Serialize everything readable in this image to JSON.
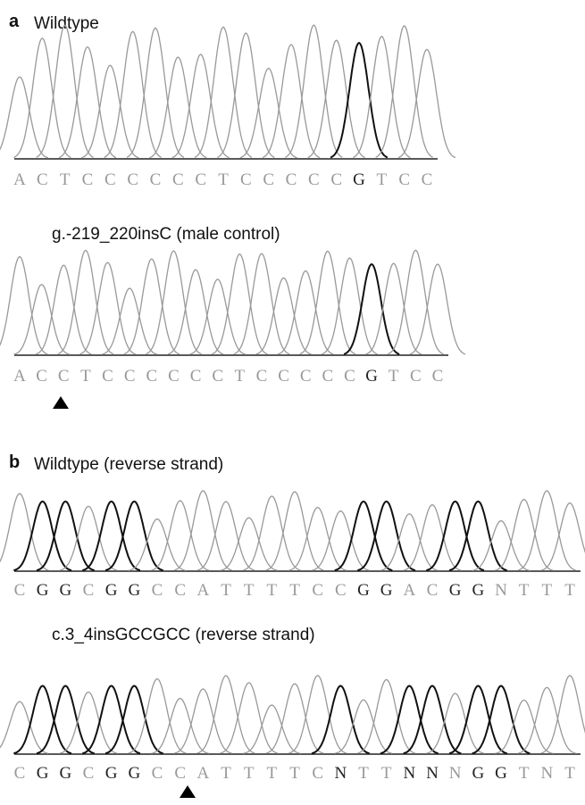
{
  "panels": [
    {
      "label": "a",
      "title": "Wildtype",
      "sequence": [
        "A",
        "C",
        "T",
        "C",
        "C",
        "C",
        "C",
        "C",
        "C",
        "T",
        "C",
        "C",
        "C",
        "C",
        "C",
        "G",
        "T",
        "C",
        "C"
      ]
    },
    {
      "title": "g.-219_220insC (male control)",
      "sequence": [
        "A",
        "C",
        "C",
        "T",
        "C",
        "C",
        "C",
        "C",
        "C",
        "C",
        "T",
        "C",
        "C",
        "C",
        "C",
        "C",
        "G",
        "T",
        "C",
        "C"
      ]
    },
    {
      "label": "b",
      "title": "Wildtype (reverse strand)",
      "sequence": [
        "C",
        "G",
        "G",
        "C",
        "G",
        "G",
        "C",
        "C",
        "A",
        "T",
        "T",
        "T",
        "T",
        "C",
        "C",
        "G",
        "G",
        "A",
        "C",
        "G",
        "G",
        "N",
        "T",
        "T",
        "T"
      ]
    },
    {
      "title": "c.3_4insGCCGCC (reverse strand)",
      "sequence": [
        "C",
        "G",
        "G",
        "C",
        "G",
        "G",
        "C",
        "C",
        "A",
        "T",
        "T",
        "T",
        "T",
        "C",
        "N",
        "T",
        "T",
        "N",
        "N",
        "N",
        "G",
        "G",
        "T",
        "N",
        "T"
      ]
    }
  ]
}
